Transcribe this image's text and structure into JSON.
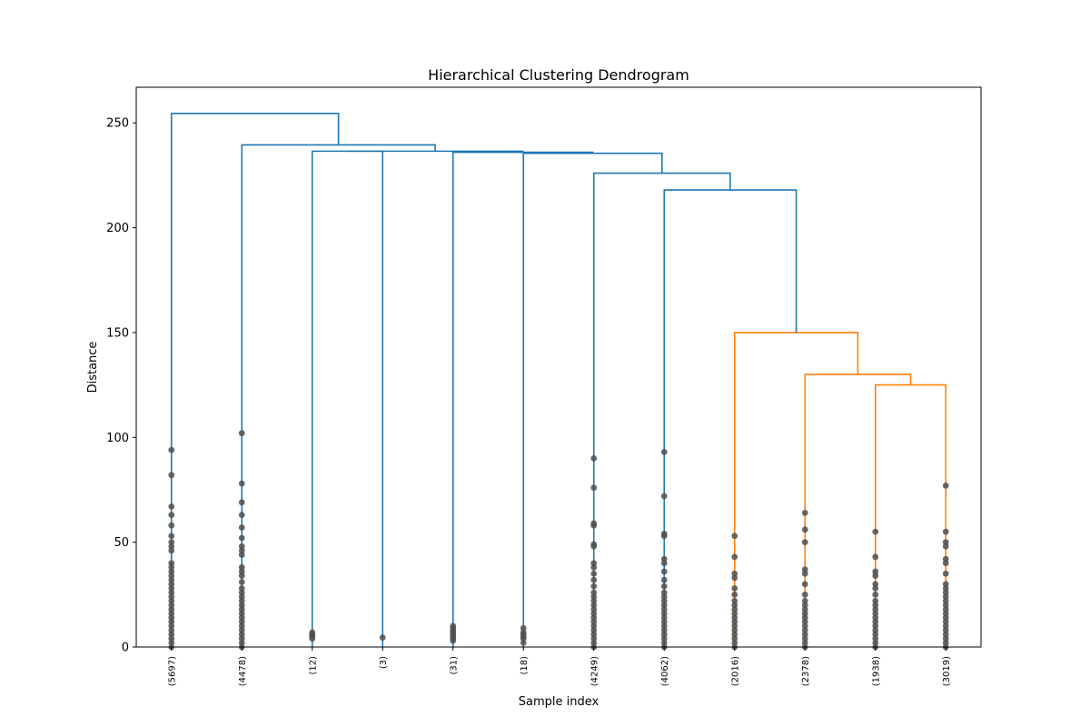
{
  "chart_data": {
    "type": "dendrogram",
    "title": "Hierarchical Clustering Dendrogram",
    "xlabel": "Sample index",
    "ylabel": "Distance",
    "ylim": [
      0,
      267
    ],
    "yticks": [
      0,
      50,
      100,
      150,
      200,
      250
    ],
    "colors": {
      "above_threshold": "#1f77b4",
      "cluster_0": "#ff7f0e",
      "marker": "#505050"
    },
    "leaves": [
      "(5697)",
      "(4478)",
      "(12)",
      "(3)",
      "(31)",
      "(18)",
      "(4249)",
      "(4062)",
      "(2016)",
      "(2378)",
      "(1938)",
      "(3019)"
    ],
    "merges": [
      {
        "left": 10,
        "right": 11,
        "height": 125,
        "color": "#ff7f0e"
      },
      {
        "left": 9,
        "right": "m0",
        "height": 130,
        "color": "#ff7f0e"
      },
      {
        "left": 8,
        "right": "m1",
        "height": 150,
        "color": "#ff7f0e"
      },
      {
        "left": 7,
        "right": "m2",
        "height": 218,
        "color": "#1f77b4"
      },
      {
        "left": 6,
        "right": "m3",
        "height": 226,
        "color": "#1f77b4"
      },
      {
        "left": 5,
        "right": "m4",
        "height": 235.5,
        "color": "#1f77b4"
      },
      {
        "left": 4,
        "right": "m5",
        "height": 236,
        "color": "#1f77b4"
      },
      {
        "left": 2,
        "right": 3,
        "height": 236.5,
        "color": "#1f77b4"
      },
      {
        "left": "m7",
        "right": "m6",
        "height": 236.5,
        "color": "#1f77b4"
      },
      {
        "left": 1,
        "right": "m8",
        "height": 239.5,
        "color": "#1f77b4"
      },
      {
        "left": 0,
        "right": "m9",
        "height": 254.5,
        "color": "#1f77b4"
      }
    ],
    "leaf_points": [
      [
        94,
        82,
        67,
        63,
        58,
        53,
        50,
        48,
        46,
        40,
        38,
        36,
        34,
        32,
        30,
        28,
        26,
        24,
        22,
        20,
        18,
        16,
        14,
        12,
        10,
        8,
        6,
        4,
        2,
        0
      ],
      [
        102,
        78,
        69,
        63,
        57,
        52,
        48,
        46,
        44,
        38,
        36,
        34,
        31,
        28,
        26,
        24,
        22,
        20,
        18,
        16,
        14,
        12,
        10,
        8,
        6,
        4,
        2,
        0
      ],
      [
        7,
        6,
        5,
        4
      ],
      [
        4.5
      ],
      [
        10,
        9,
        8,
        7,
        6,
        5,
        4,
        3
      ],
      [
        9,
        7,
        6,
        5,
        4,
        2
      ],
      [
        90,
        76,
        59,
        58,
        49,
        48,
        40,
        38,
        35,
        32,
        29,
        26,
        24,
        22,
        20,
        18,
        16,
        14,
        12,
        10,
        8,
        6,
        4,
        2,
        0
      ],
      [
        93,
        72,
        54,
        53,
        42,
        40,
        36,
        32,
        29,
        26,
        24,
        22,
        20,
        18,
        16,
        14,
        12,
        10,
        8,
        6,
        4,
        2,
        0
      ],
      [
        53,
        43,
        35,
        33,
        28,
        25,
        22,
        20,
        18,
        16,
        14,
        12,
        10,
        8,
        6,
        4,
        2,
        0
      ],
      [
        64,
        56,
        50,
        37,
        35,
        30,
        25,
        22,
        20,
        18,
        16,
        14,
        12,
        10,
        8,
        6,
        4,
        2,
        0
      ],
      [
        55,
        43,
        36,
        34,
        30,
        28,
        25,
        22,
        20,
        18,
        16,
        14,
        12,
        10,
        8,
        6,
        4,
        2,
        0
      ],
      [
        77,
        55,
        50,
        48,
        42,
        40,
        35,
        30,
        28,
        26,
        24,
        22,
        20,
        18,
        16,
        14,
        12,
        10,
        8,
        6,
        4,
        2,
        0
      ]
    ]
  }
}
